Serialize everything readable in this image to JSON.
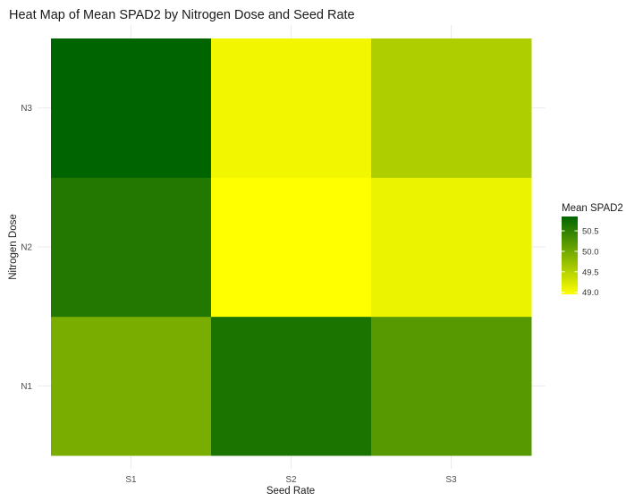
{
  "chart_data": {
    "type": "heatmap",
    "title": "Heat Map of Mean SPAD2 by Nitrogen Dose and Seed Rate",
    "xlabel": "Seed Rate",
    "ylabel": "Nitrogen Dose",
    "x_categories": [
      "S1",
      "S2",
      "S3"
    ],
    "y_categories": [
      "N1",
      "N2",
      "N3"
    ],
    "values": [
      [
        49.95,
        50.65,
        50.2
      ],
      [
        50.6,
        48.95,
        49.1
      ],
      [
        50.85,
        49.05,
        49.55
      ]
    ],
    "color_low": "#ffff00",
    "color_high": "#006400",
    "legend": {
      "title": "Mean SPAD2",
      "ticks": [
        49.0,
        49.5,
        50.0,
        50.5
      ],
      "tick_labels": [
        "49.0",
        "49.5",
        "50.0",
        "50.5"
      ],
      "range": [
        48.95,
        50.85
      ],
      "position": "right"
    },
    "grid": true
  }
}
